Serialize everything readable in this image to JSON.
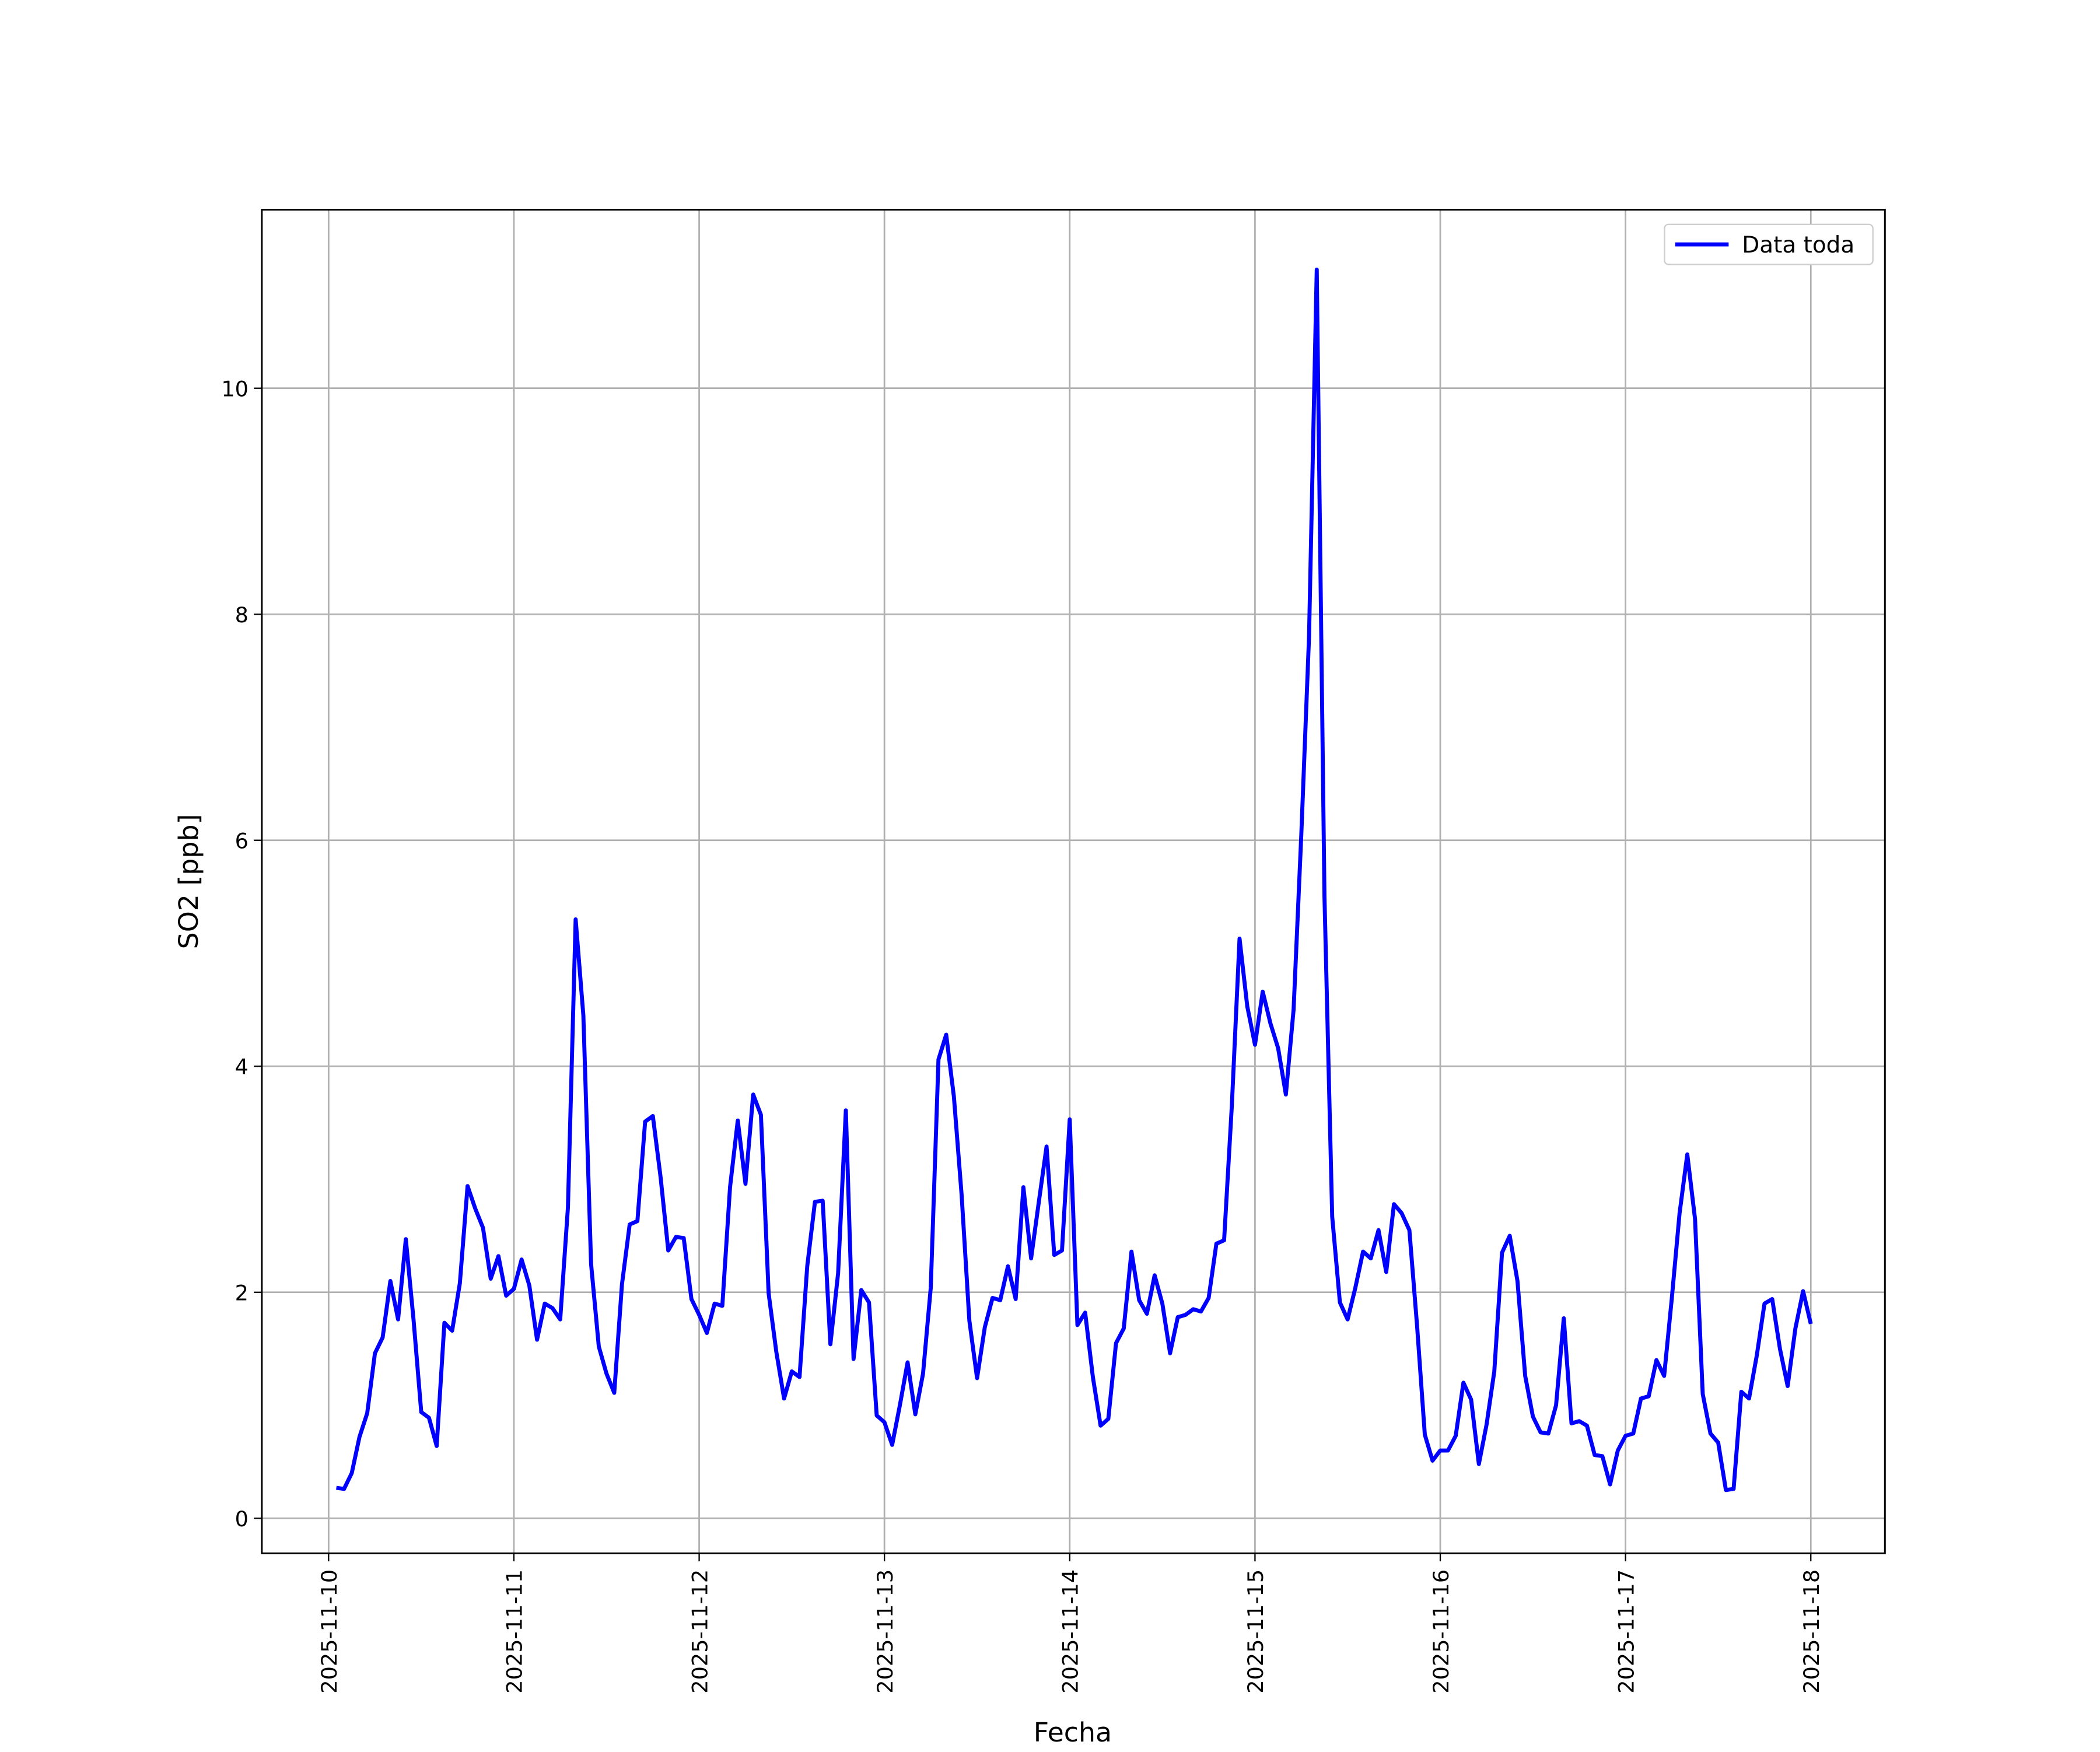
{
  "chart_data": {
    "type": "line",
    "xlabel": "Fecha",
    "ylabel": "SO2 [ppb]",
    "x": [
      1,
      2,
      3,
      4,
      5,
      6,
      7,
      8,
      9,
      10,
      11,
      12,
      13,
      14,
      15,
      16,
      17,
      18,
      19,
      20,
      21,
      22,
      23,
      24,
      25,
      26,
      27,
      28,
      29,
      30,
      31,
      32,
      33,
      34,
      35,
      36,
      37,
      38,
      39,
      40,
      41,
      42,
      43,
      44,
      45,
      46,
      47,
      48,
      49,
      50,
      51,
      52,
      53,
      54,
      55,
      56,
      57,
      58,
      59,
      60,
      61,
      62,
      63,
      64,
      65,
      66,
      67,
      68,
      69,
      70,
      71,
      72,
      73,
      74,
      75,
      76,
      77,
      78,
      79,
      80,
      81,
      82,
      83,
      84,
      85,
      86,
      87,
      88,
      89,
      90,
      91,
      92,
      93,
      94,
      95,
      96,
      97,
      98,
      99,
      100,
      101,
      102,
      103,
      104,
      105,
      106,
      107,
      108,
      109,
      110,
      111,
      112,
      113,
      114,
      115,
      116,
      117,
      118,
      119,
      120,
      121,
      122,
      123,
      124,
      125,
      126,
      127,
      128,
      129,
      130,
      131,
      132,
      133,
      134,
      135,
      136,
      137,
      138,
      139,
      140,
      141,
      142,
      143,
      144,
      145,
      146,
      147,
      148,
      149,
      150,
      151,
      152,
      153,
      154,
      155,
      156,
      157,
      158,
      159,
      160,
      161,
      162,
      163,
      164,
      165,
      166,
      167,
      168,
      169,
      170,
      171,
      172,
      173,
      174,
      175,
      176,
      177,
      178,
      179,
      180,
      181,
      182,
      183,
      184,
      185,
      186,
      187,
      188,
      189,
      190,
      191,
      192
    ],
    "series": [
      {
        "name": "Data toda",
        "color": "#0000ff",
        "values": [
          0.27,
          0.26,
          0.4,
          0.72,
          0.93,
          1.46,
          1.6,
          2.1,
          1.76,
          2.47,
          1.76,
          0.94,
          0.89,
          0.64,
          1.73,
          1.66,
          2.08,
          2.94,
          2.74,
          2.57,
          2.12,
          2.32,
          1.97,
          2.03,
          2.29,
          2.06,
          1.58,
          1.9,
          1.86,
          1.76,
          2.75,
          5.3,
          4.45,
          2.25,
          1.52,
          1.28,
          1.11,
          2.07,
          2.6,
          2.63,
          3.51,
          3.56,
          3.02,
          2.37,
          2.49,
          2.48,
          1.94,
          1.8,
          1.64,
          1.9,
          1.88,
          2.93,
          3.52,
          2.96,
          3.75,
          3.57,
          1.99,
          1.47,
          1.06,
          1.3,
          1.25,
          2.23,
          2.8,
          2.81,
          1.54,
          2.17,
          3.61,
          1.41,
          2.02,
          1.91,
          0.91,
          0.85,
          0.65,
          1.0,
          1.38,
          0.92,
          1.28,
          2.04,
          4.06,
          4.28,
          3.73,
          2.86,
          1.75,
          1.24,
          1.69,
          1.95,
          1.93,
          2.23,
          1.94,
          2.93,
          2.3,
          2.8,
          3.29,
          2.33,
          2.37,
          3.53,
          1.71,
          1.82,
          1.25,
          0.82,
          0.88,
          1.55,
          1.68,
          2.36,
          1.93,
          1.81,
          2.15,
          1.9,
          1.46,
          1.78,
          1.8,
          1.85,
          1.83,
          1.95,
          2.43,
          2.46,
          3.65,
          5.13,
          4.53,
          4.19,
          4.66,
          4.38,
          4.16,
          3.75,
          4.5,
          6.05,
          7.8,
          11.05,
          5.5,
          2.67,
          1.91,
          1.76,
          2.04,
          2.36,
          2.3,
          2.55,
          2.18,
          2.78,
          2.7,
          2.55,
          1.7,
          0.74,
          0.51,
          0.6,
          0.6,
          0.73,
          1.2,
          1.05,
          0.48,
          0.83,
          1.3,
          2.35,
          2.5,
          2.1,
          1.26,
          0.9,
          0.76,
          0.75,
          1.0,
          1.77,
          0.84,
          0.86,
          0.82,
          0.56,
          0.55,
          0.3,
          0.6,
          0.73,
          0.75,
          1.06,
          1.08,
          1.4,
          1.26,
          1.95,
          2.7,
          3.22,
          2.65,
          1.1,
          0.75,
          0.67,
          0.25,
          0.26,
          1.12,
          1.06,
          1.44,
          1.9,
          1.94,
          1.5,
          1.17,
          1.68,
          2.01,
          1.72
        ]
      }
    ],
    "xlim": [
      -8.65,
      201.6
    ],
    "xticks": [
      {
        "value": 0,
        "label": "2025-11-10"
      },
      {
        "value": 24,
        "label": "2025-11-11"
      },
      {
        "value": 48,
        "label": "2025-11-12"
      },
      {
        "value": 72,
        "label": "2025-11-13"
      },
      {
        "value": 96,
        "label": "2025-11-14"
      },
      {
        "value": 120,
        "label": "2025-11-15"
      },
      {
        "value": 144,
        "label": "2025-11-16"
      },
      {
        "value": 168,
        "label": "2025-11-17"
      },
      {
        "value": 192,
        "label": "2025-11-18"
      }
    ],
    "ylim": [
      -0.31,
      11.58
    ],
    "yticks": [
      0,
      2,
      4,
      6,
      8,
      10
    ],
    "grid": true,
    "legend": "upper right"
  }
}
